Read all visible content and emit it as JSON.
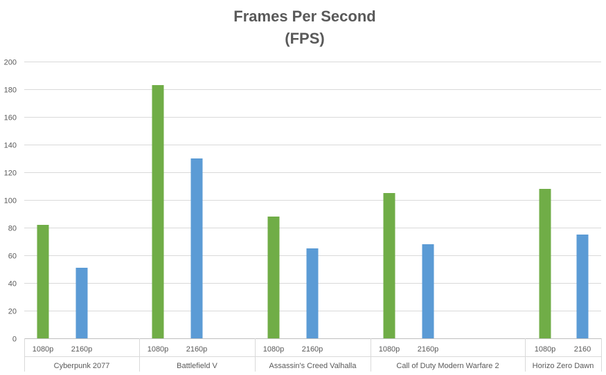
{
  "chart_data": {
    "type": "bar",
    "title": "Frames Per Second",
    "subtitle": "(FPS)",
    "xlabel": "",
    "ylabel": "",
    "ylim": [
      0,
      200
    ],
    "yticks": [
      0,
      20,
      40,
      60,
      80,
      100,
      120,
      140,
      160,
      180,
      200
    ],
    "grid": true,
    "legend": "none",
    "groups": [
      {
        "name": "Cyberpunk 2077",
        "bars": [
          {
            "label": "1080p",
            "value": 82,
            "color": "#70ad47"
          },
          {
            "label": "2160p",
            "value": 51,
            "color": "#5b9bd5"
          }
        ]
      },
      {
        "name": "Battlefield V",
        "bars": [
          {
            "label": "1080p",
            "value": 183,
            "color": "#70ad47"
          },
          {
            "label": "2160p",
            "value": 130,
            "color": "#5b9bd5"
          }
        ]
      },
      {
        "name": "Assassin's Creed Valhalla",
        "bars": [
          {
            "label": "1080p",
            "value": 88,
            "color": "#70ad47"
          },
          {
            "label": "2160p",
            "value": 65,
            "color": "#5b9bd5"
          }
        ]
      },
      {
        "name": "Call of Duty Modern Warfare 2",
        "bars": [
          {
            "label": "1080p",
            "value": 105,
            "color": "#70ad47"
          },
          {
            "label": "2160p",
            "value": 68,
            "color": "#5b9bd5"
          }
        ]
      },
      {
        "name": "Horizo Zero Dawn",
        "bars": [
          {
            "label": "1080p",
            "value": 108,
            "color": "#70ad47"
          },
          {
            "label": "2160",
            "value": 75,
            "color": "#5b9bd5"
          }
        ]
      }
    ]
  }
}
